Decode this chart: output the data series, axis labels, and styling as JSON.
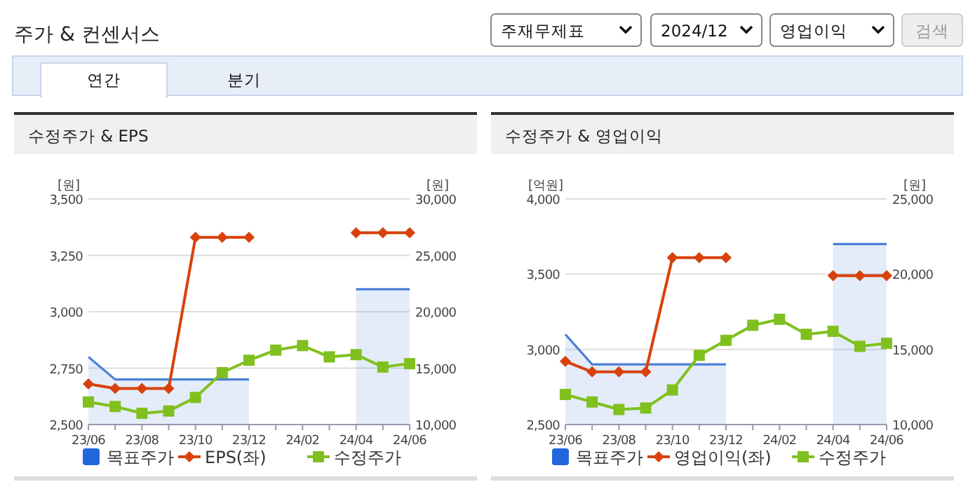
{
  "chart_data": [
    {
      "type": "other",
      "title": "주가 & 컨센서스",
      "annotations": [
        "주재무제표",
        "2024/12",
        "영업이익",
        "검색",
        "연간",
        "분기"
      ]
    },
    {
      "type": "line",
      "title": "수정주가 & EPS",
      "categories": [
        "23/06",
        null,
        "23/08",
        null,
        "23/10",
        null,
        "23/12",
        null,
        "24/02",
        null,
        "24/04",
        null,
        "24/06"
      ],
      "ylabel": "[원]",
      "y2label": "[원]",
      "ylim": [
        2500,
        3500
      ],
      "yticks": [
        {
          "value": 2500,
          "label": "2,500"
        },
        {
          "value": 2750,
          "label": "2,750"
        },
        {
          "value": 3000,
          "label": "3,000"
        },
        {
          "value": 3250,
          "label": "3,250"
        },
        {
          "value": 3500,
          "label": "3,500"
        }
      ],
      "y2lim": [
        10000,
        30000
      ],
      "y2ticks": [
        {
          "value": 10000,
          "label": "10,000"
        },
        {
          "value": 15000,
          "label": "15,000"
        },
        {
          "value": 20000,
          "label": "20,000"
        },
        {
          "value": 25000,
          "label": "25,000"
        },
        {
          "value": 30000,
          "label": "30,000"
        }
      ],
      "grid": "y",
      "legend": "bottom",
      "series": [
        {
          "name": "목표주가",
          "type": "area",
          "axis": "y2",
          "color": "#4a7fd6",
          "values": [
            16000,
            14000,
            14000,
            14000,
            14000,
            14000,
            14000,
            null,
            null,
            null,
            22000,
            22000,
            22000
          ]
        },
        {
          "name": "EPS(좌)",
          "color": "#d9410b",
          "marker": "diamond",
          "values": [
            2680,
            2660,
            2660,
            2660,
            3330,
            3330,
            3330,
            null,
            null,
            null,
            3350,
            3350,
            3350
          ]
        },
        {
          "name": "수정주가",
          "color": "#80c01e",
          "marker": "square",
          "axis": "y2",
          "values": [
            12000,
            11600,
            11000,
            11200,
            12400,
            14600,
            15700,
            16600,
            17000,
            16000,
            16200,
            15100,
            15400
          ]
        }
      ]
    },
    {
      "type": "line",
      "title": "수정주가 & 영업이익",
      "categories": [
        "23/06",
        null,
        "23/08",
        null,
        "23/10",
        null,
        "23/12",
        null,
        "24/02",
        null,
        "24/04",
        null,
        "24/06"
      ],
      "ylabel": "[억원]",
      "y2label": "[원]",
      "ylim": [
        2500,
        4000
      ],
      "yticks": [
        {
          "value": 2500,
          "label": "2,500"
        },
        {
          "value": 3000,
          "label": "3,000"
        },
        {
          "value": 3500,
          "label": "3,500"
        },
        {
          "value": 4000,
          "label": "4,000"
        }
      ],
      "y2lim": [
        10000,
        25000
      ],
      "y2ticks": [
        {
          "value": 10000,
          "label": "10,000"
        },
        {
          "value": 15000,
          "label": "15,000"
        },
        {
          "value": 20000,
          "label": "20,000"
        },
        {
          "value": 25000,
          "label": "25,000"
        }
      ],
      "grid": "y",
      "legend": "bottom",
      "series": [
        {
          "name": "목표주가",
          "type": "area",
          "axis": "y2",
          "color": "#4a7fd6",
          "values": [
            16000,
            14000,
            14000,
            14000,
            14000,
            14000,
            14000,
            null,
            null,
            null,
            22000,
            22000,
            22000
          ]
        },
        {
          "name": "영업이익(좌)",
          "color": "#d9410b",
          "marker": "diamond",
          "values": [
            2920,
            2850,
            2850,
            2850,
            3610,
            3610,
            3610,
            null,
            null,
            null,
            3490,
            3490,
            3490
          ]
        },
        {
          "name": "수정주가",
          "color": "#80c01e",
          "marker": "square",
          "axis": "y2",
          "values": [
            12000,
            11500,
            11000,
            11100,
            12300,
            14600,
            15600,
            16600,
            17000,
            16000,
            16200,
            15200,
            15400
          ]
        }
      ]
    }
  ]
}
